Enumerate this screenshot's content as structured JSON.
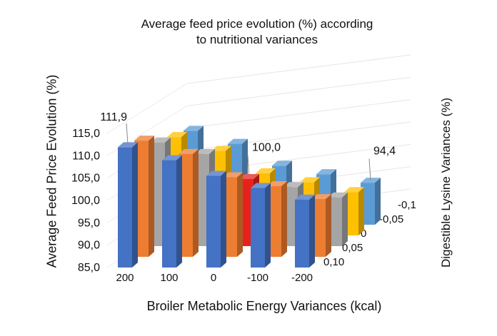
{
  "chart_data": {
    "type": "bar",
    "style": "3d-column",
    "title": [
      "Average feed price evolution (%) according",
      "to nutritional variances"
    ],
    "xlabel": "Broiler Metabolic Energy Variances (kcal)",
    "ylabel": "Average Feed Price Evolution (%)",
    "zlabel": "Digestible Lysine Variances (%)",
    "categories": [
      "200",
      "100",
      "0",
      "-100",
      "-200"
    ],
    "y_ticks": [
      "85,0",
      "90,0",
      "95,0",
      "100,0",
      "105,0",
      "110,0",
      "115,0"
    ],
    "ylim": [
      85,
      115
    ],
    "grid": true,
    "series": [
      {
        "name": "0,10",
        "color": "#4472C4",
        "values": [
          111.9,
          109.0,
          105.5,
          102.8,
          100.2
        ]
      },
      {
        "name": "0,05",
        "color": "#ED7D31",
        "values": [
          111.0,
          108.0,
          102.8,
          100.8,
          97.9
        ]
      },
      {
        "name": "0",
        "color": "#A5A5A5",
        "values": [
          108.2,
          105.6,
          100.0,
          98.2,
          95.9
        ]
      },
      {
        "name": "-0,05",
        "color": "#FFC000",
        "values": [
          107.0,
          103.9,
          98.9,
          96.9,
          94.7
        ]
      },
      {
        "name": "-0,1",
        "color": "#5B9BD5",
        "values": [
          106.0,
          103.1,
          98.2,
          96.3,
          94.4
        ]
      }
    ],
    "highlight": {
      "category": "0",
      "series": "0",
      "color": "#E8221B"
    },
    "data_labels": [
      {
        "text": "111,9",
        "category": "200",
        "series": "0,10"
      },
      {
        "text": "100,0",
        "category": "0",
        "series": "0"
      },
      {
        "text": "94,4",
        "category": "-200",
        "series": "-0,1"
      }
    ]
  }
}
